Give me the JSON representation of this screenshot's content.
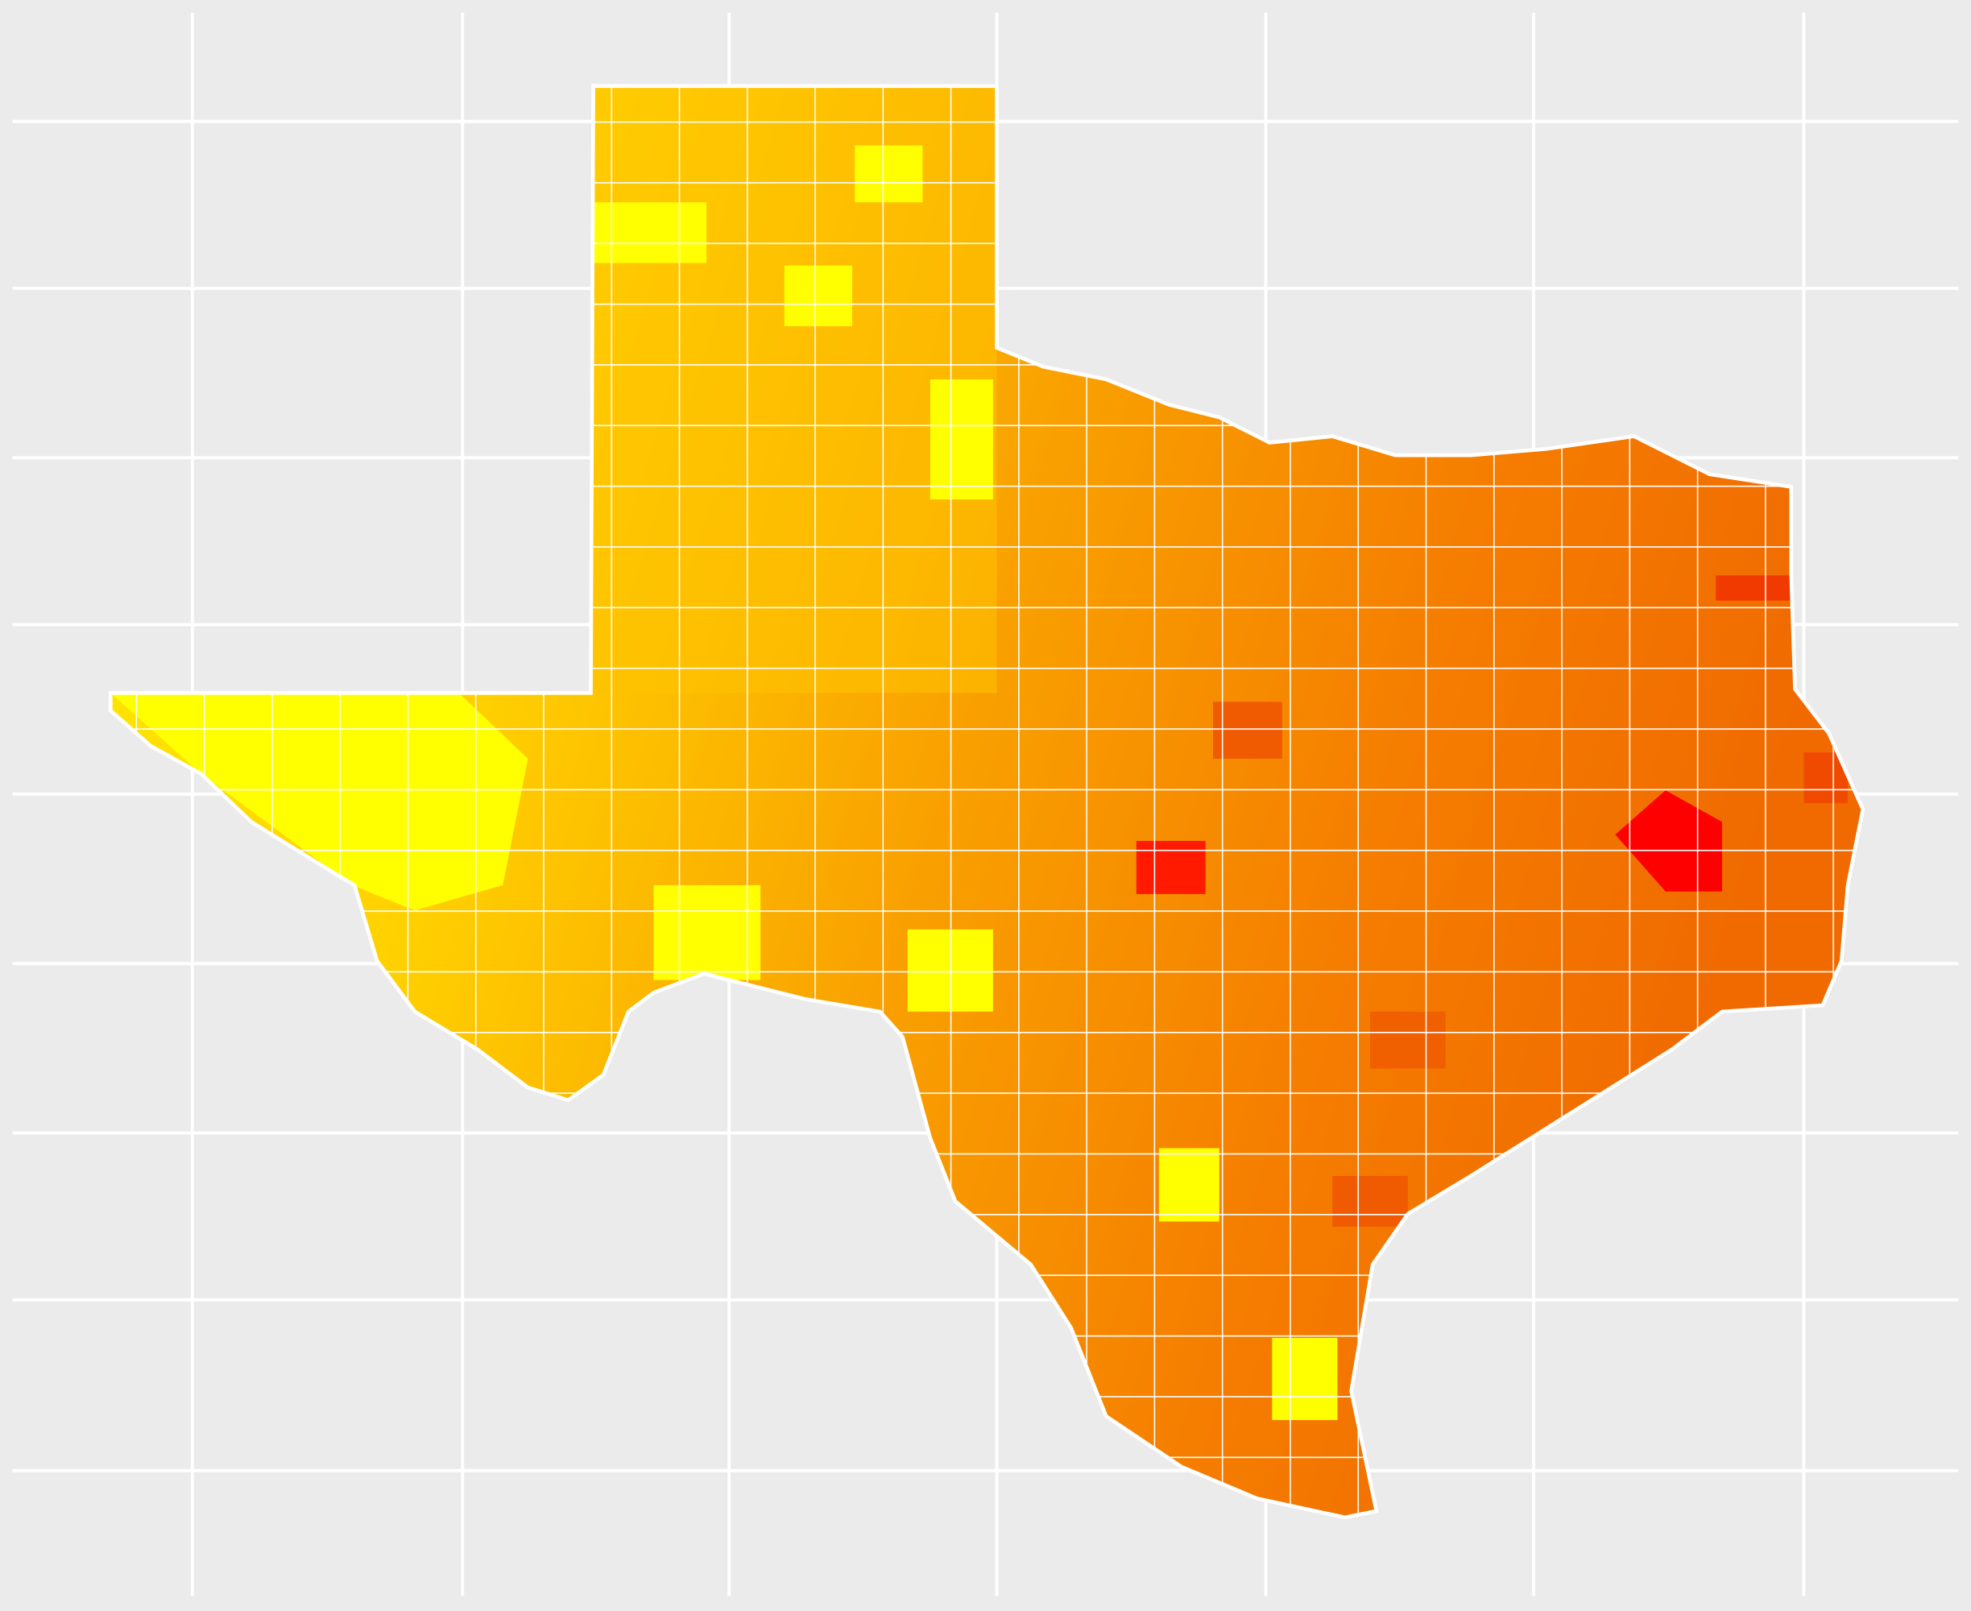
{
  "map": {
    "grid": true
  }
}
